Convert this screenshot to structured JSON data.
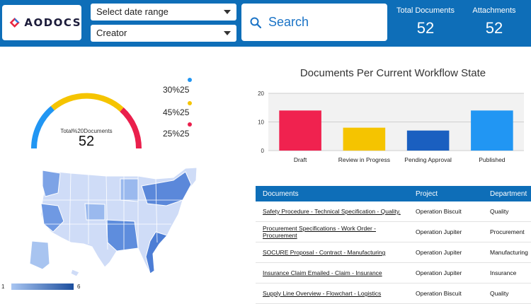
{
  "header": {
    "logo_text": "AODOCS",
    "date_select": "Select date range",
    "creator_select": "Creator",
    "search_label": "Search",
    "stats": [
      {
        "label": "Total Documents",
        "value": "52"
      },
      {
        "label": "Attachments",
        "value": "52"
      }
    ]
  },
  "gauge": {
    "label": "Total%20Documents",
    "value": "52",
    "legend": [
      {
        "text": "30%25",
        "color": "#2196f3"
      },
      {
        "text": "45%25",
        "color": "#f5c400"
      },
      {
        "text": "25%25",
        "color": "#ea1f4c"
      }
    ]
  },
  "map": {
    "legend_min": "1",
    "legend_max": "6"
  },
  "chart_data": {
    "type": "bar",
    "title": "Documents Per Current Workflow State",
    "categories": [
      "Draft",
      "Review in Progress",
      "Pending Approval",
      "Published"
    ],
    "values": [
      14,
      8,
      7,
      14
    ],
    "colors": [
      "#f0224f",
      "#f5c400",
      "#1a5fc0",
      "#2196f3"
    ],
    "ylim": [
      0,
      20
    ],
    "yticks": [
      0,
      10,
      20
    ],
    "grid": true
  },
  "table": {
    "headers": [
      "Documents",
      "Project",
      "Department"
    ],
    "rows": [
      [
        "Safety Procedure - Technical Specification - Quality.",
        "Operation Biscuit",
        "Quality"
      ],
      [
        "Procurement Specifications - Work Order - Procurement",
        "Operation Jupiter",
        "Procurement"
      ],
      [
        "SOCURE Proposal - Contract - Manufacturing",
        "Operation Jupiter",
        "Manufacturing"
      ],
      [
        "Insurance Claim Emailed - Claim - Insurance",
        "Operation Jupiter",
        "Insurance"
      ],
      [
        "Supply Line Overview - Flowchart - Logistics",
        "Operation Biscuit",
        "Quality"
      ]
    ]
  }
}
